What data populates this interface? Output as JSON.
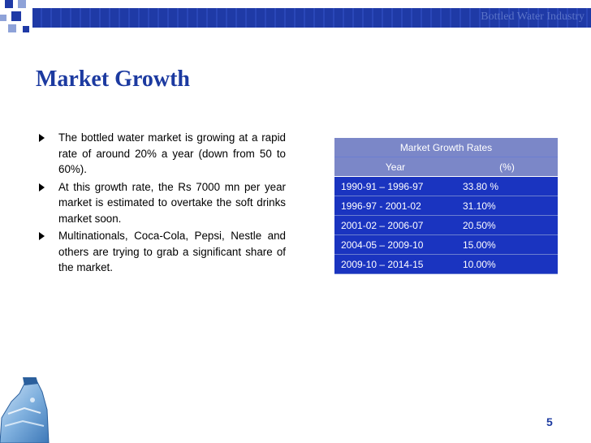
{
  "header": {
    "title": "Bottled Water Industry"
  },
  "slide": {
    "title": "Market Growth",
    "bullets": [
      "The bottled water market is growing at a rapid rate of around 20% a year (down from 50 to 60%).",
      "At this growth rate, the Rs 7000 mn per year market is estimated to overtake the soft drinks market soon.",
      "Multinationals, Coca-Cola, Pepsi, Nestle and others are trying to grab a significant share of the market."
    ]
  },
  "table": {
    "title": "Market Growth Rates",
    "columns": [
      "Year",
      "(%)"
    ],
    "rows": [
      [
        "1990-91 – 1996-97",
        "33.80 %"
      ],
      [
        "1996-97 - 2001-02",
        "31.10%"
      ],
      [
        "2001-02 – 2006-07",
        "20.50%"
      ],
      [
        "2004-05 – 2009-10",
        "15.00%"
      ],
      [
        "2009-10 – 2014-15",
        "10.00%"
      ]
    ]
  },
  "footer": {
    "page_number": "5"
  },
  "colors": {
    "accent": "#1c3aa0",
    "table_header": "#7b87c8",
    "table_body": "#1a34c0"
  }
}
